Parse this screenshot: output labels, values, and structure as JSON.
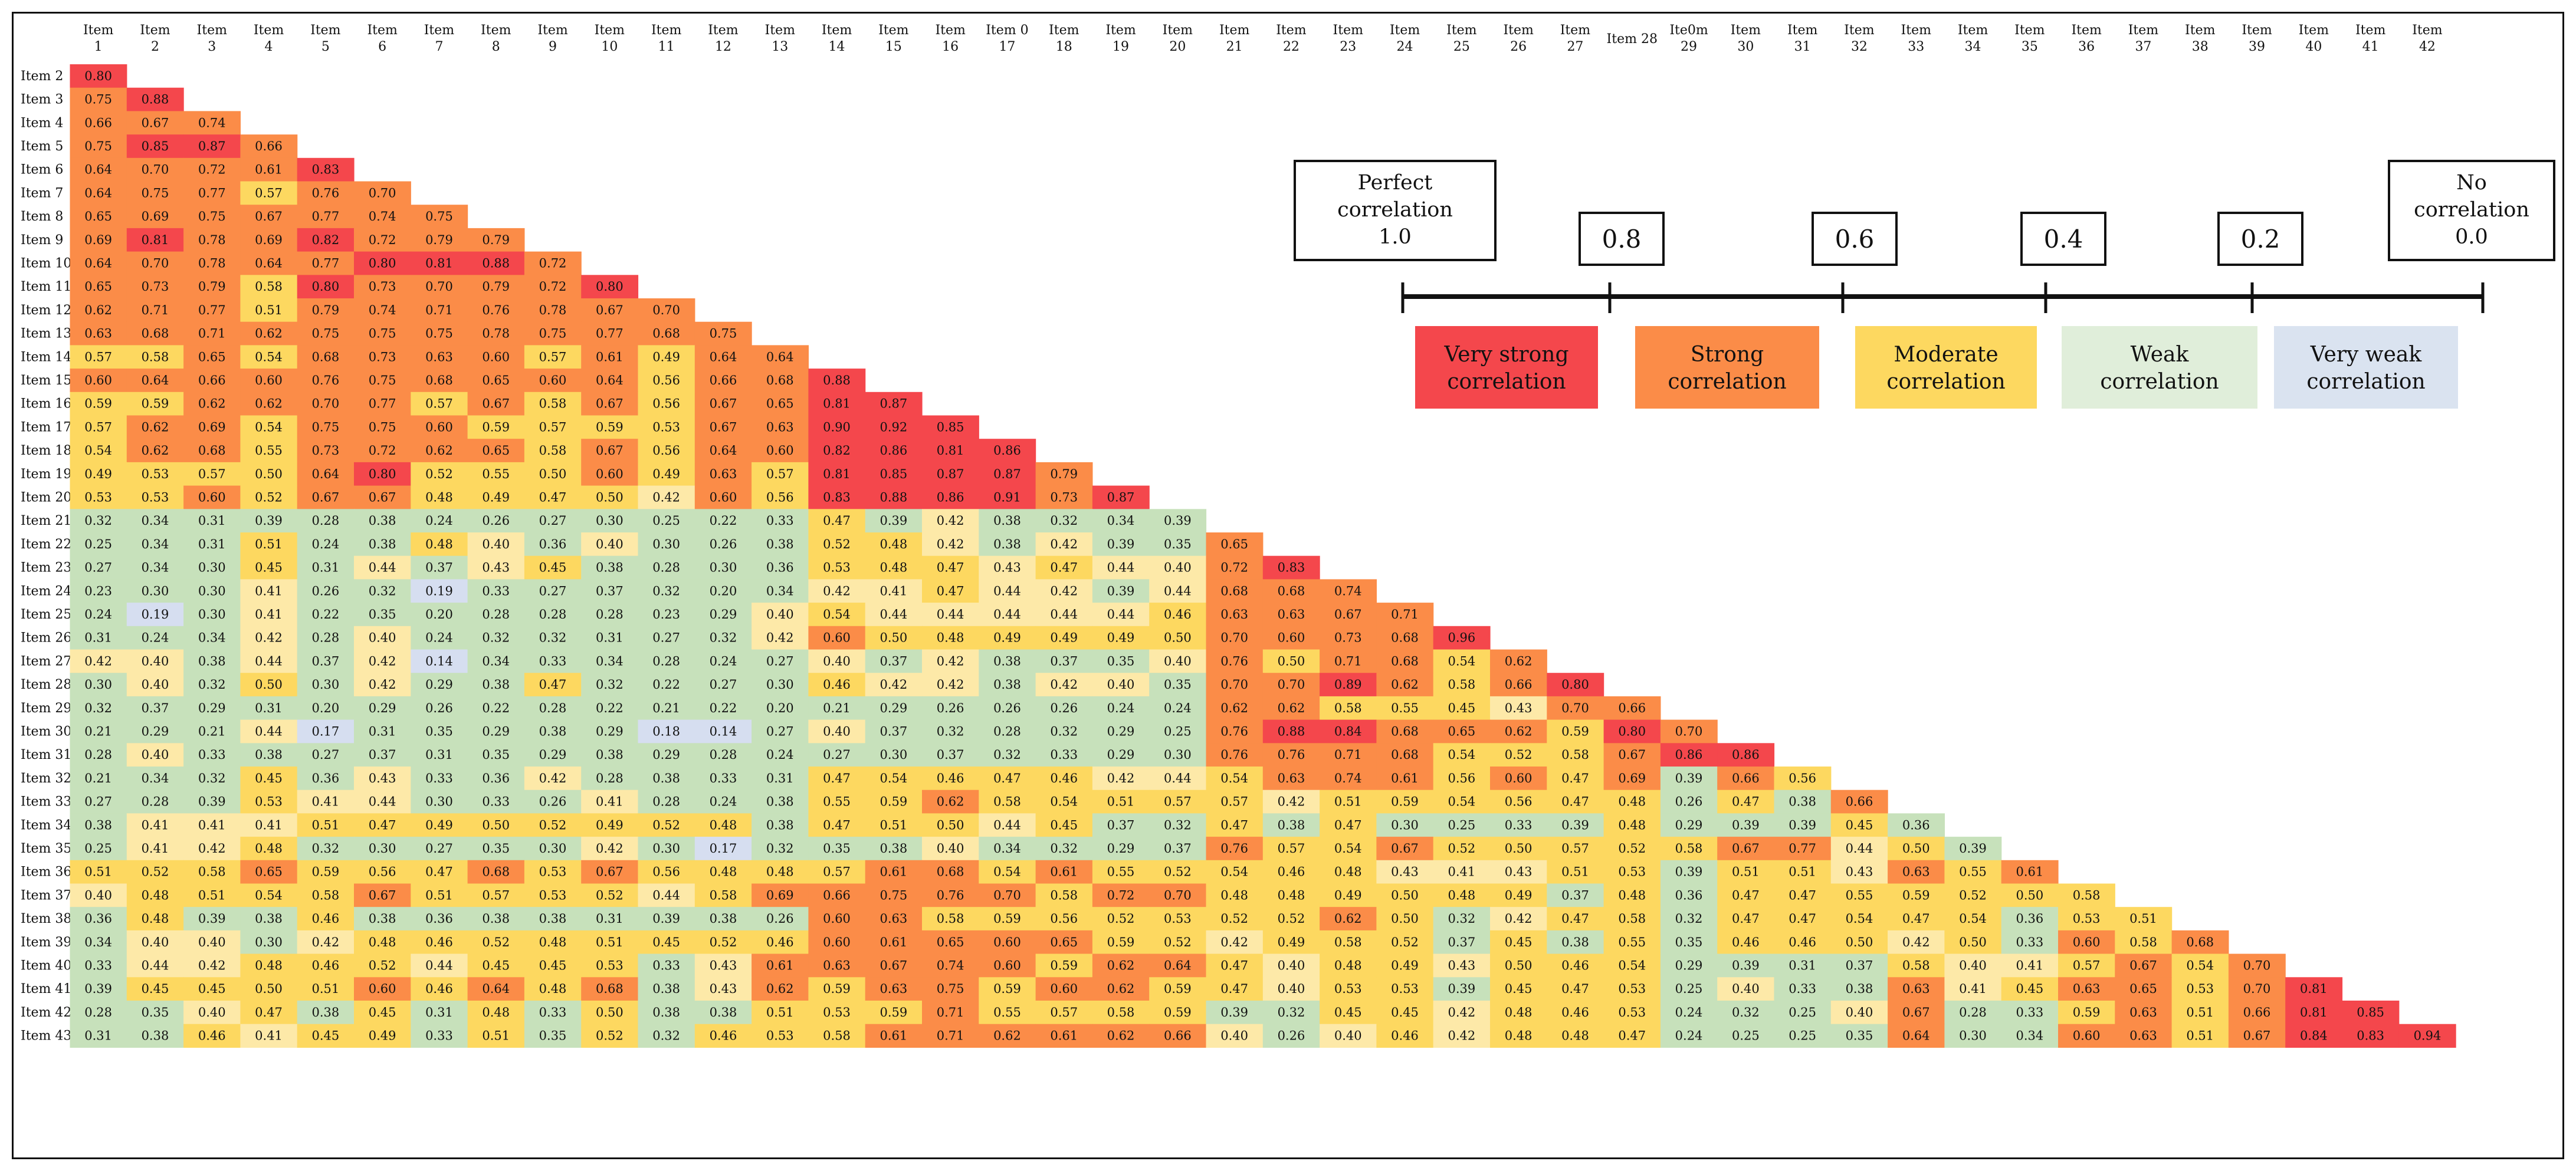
{
  "chart_data": {
    "type": "heatmap",
    "layout": "lower-triangular",
    "column_labels": [
      [
        "Item",
        "1"
      ],
      [
        "Item",
        "2"
      ],
      [
        "Item",
        "3"
      ],
      [
        "Item",
        "4"
      ],
      [
        "Item",
        "5"
      ],
      [
        "Item",
        "6"
      ],
      [
        "Item",
        "7"
      ],
      [
        "Item",
        "8"
      ],
      [
        "Item",
        "9"
      ],
      [
        "Item",
        "10"
      ],
      [
        "Item",
        "11"
      ],
      [
        "Item",
        "12"
      ],
      [
        "Item",
        "13"
      ],
      [
        "Item",
        "14"
      ],
      [
        "Item",
        "15"
      ],
      [
        "Item",
        "16"
      ],
      [
        "Item 0",
        "17"
      ],
      [
        "Item",
        "18"
      ],
      [
        "Item",
        "19"
      ],
      [
        "Item",
        "20"
      ],
      [
        "Item",
        "21"
      ],
      [
        "Item",
        "22"
      ],
      [
        "Item",
        "23"
      ],
      [
        "Item",
        "24"
      ],
      [
        "Item",
        "25"
      ],
      [
        "Item",
        "26"
      ],
      [
        "Item",
        "27"
      ],
      [
        "Item 28",
        ""
      ],
      [
        "Ite0m",
        "29"
      ],
      [
        "Item",
        "30"
      ],
      [
        "Item",
        "31"
      ],
      [
        "Item",
        "32"
      ],
      [
        "Item",
        "33"
      ],
      [
        "Item",
        "34"
      ],
      [
        "Item",
        "35"
      ],
      [
        "Item",
        "36"
      ],
      [
        "Item",
        "37"
      ],
      [
        "Item",
        "38"
      ],
      [
        "Item",
        "39"
      ],
      [
        "Item",
        "40"
      ],
      [
        "Item",
        "41"
      ],
      [
        "Item",
        "42"
      ]
    ],
    "row_labels": [
      "Item 2",
      "Item 3",
      "Item 4",
      "Item 5",
      "Item 6",
      "Item 7",
      "Item 8",
      "Item 9",
      "Item 10",
      "Item 11",
      "Item 12",
      "Item 13",
      "Item 14",
      "Item 15",
      "Item 16",
      "Item 17",
      "Item 18",
      "Item 19",
      "Item 20",
      "Item 21",
      "Item 22",
      "Item 23",
      "Item 24",
      "Item 25",
      "Item 26",
      "Item 27",
      "Item 28",
      "Item 29",
      "Item 30",
      "Item 31",
      "Item 32",
      "Item 33",
      "Item 34",
      "Item 35",
      "Item 36",
      "Item 37",
      "Item 38",
      "Item 39",
      "Item 40",
      "Item 41",
      "Item 42",
      "Item 43"
    ],
    "rows": [
      [
        "0.80"
      ],
      [
        "0.75",
        "0.88"
      ],
      [
        "0.66",
        "0.67",
        "0.74"
      ],
      [
        "0.75",
        "0.85",
        "0.87",
        "0.66"
      ],
      [
        "0.64",
        "0.70",
        "0.72",
        "0.61",
        "0.83"
      ],
      [
        "0.64",
        "0.75",
        "0.77",
        "0.57",
        "0.76",
        "0.70"
      ],
      [
        "0.65",
        "0.69",
        "0.75",
        "0.67",
        "0.77",
        "0.74",
        "0.75"
      ],
      [
        "0.69",
        "0.81",
        "0.78",
        "0.69",
        "0.82",
        "0.72",
        "0.79",
        "0.79"
      ],
      [
        "0.64",
        "0.70",
        "0.78",
        "0.64",
        "0.77",
        "0.80",
        "0.81",
        "0.88",
        "0.72"
      ],
      [
        "0.65",
        "0.73",
        "0.79",
        "0.58",
        "0.80",
        "0.73",
        "0.70",
        "0.79",
        "0.72",
        "0.80"
      ],
      [
        "0.62",
        "0.71",
        "0.77",
        "0.51",
        "0.79",
        "0.74",
        "0.71",
        "0.76",
        "0.78",
        "0.67",
        "0.70"
      ],
      [
        "0.63",
        "0.68",
        "0.71",
        "0.62",
        "0.75",
        "0.75",
        "0.75",
        "0.78",
        "0.75",
        "0.77",
        "0.68",
        "0.75"
      ],
      [
        "0.57",
        "0.58",
        "0.65",
        "0.54",
        "0.68",
        "0.73",
        "0.63",
        "0.60",
        "0.57",
        "0.61",
        "0.49",
        "0.64",
        "0.64"
      ],
      [
        "0.60",
        "0.64",
        "0.66",
        "0.60",
        "0.76",
        "0.75",
        "0.68",
        "0.65",
        "0.60",
        "0.64",
        "0.56",
        "0.66",
        "0.68",
        "0.88"
      ],
      [
        "0.59",
        "0.59",
        "0.62",
        "0.62",
        "0.70",
        "0.77",
        "0.57",
        "0.67",
        "0.58",
        "0.67",
        "0.56",
        "0.67",
        "0.65",
        "0.81",
        "0.87"
      ],
      [
        "0.57",
        "0.62",
        "0.69",
        "0.54",
        "0.75",
        "0.75",
        "0.60",
        "0.59",
        "0.57",
        "0.59",
        "0.53",
        "0.67",
        "0.63",
        "0.90",
        "0.92",
        "0.85"
      ],
      [
        "0.54",
        "0.62",
        "0.68",
        "0.55",
        "0.73",
        "0.72",
        "0.62",
        "0.65",
        "0.58",
        "0.67",
        "0.56",
        "0.64",
        "0.60",
        "0.82",
        "0.86",
        "0.81",
        "0.86"
      ],
      [
        "0.49",
        "0.53",
        "0.57",
        "0.50",
        "0.64",
        "0.80",
        "0.52",
        "0.55",
        "0.50",
        "0.60",
        "0.49",
        "0.63",
        "0.57",
        "0.81",
        "0.85",
        "0.87",
        "0.87",
        "0.79"
      ],
      [
        "0.53",
        "0.53",
        "0.60",
        "0.52",
        "0.67",
        "0.67",
        "0.48",
        "0.49",
        "0.47",
        "0.50",
        "0.42",
        "0.60",
        "0.56",
        "0.83",
        "0.88",
        "0.86",
        "0.91",
        "0.73",
        "0.87"
      ],
      [
        "0.32",
        "0.34",
        "0.31",
        "0.39",
        "0.28",
        "0.38",
        "0.24",
        "0.26",
        "0.27",
        "0.30",
        "0.25",
        "0.22",
        "0.33",
        "0.47",
        "0.39",
        "0.42",
        "0.38",
        "0.32",
        "0.34",
        "0.39"
      ],
      [
        "0.25",
        "0.34",
        "0.31",
        "0.51",
        "0.24",
        "0.38",
        "0.48",
        "0.40",
        "0.36",
        "0.40",
        "0.30",
        "0.26",
        "0.38",
        "0.52",
        "0.48",
        "0.42",
        "0.38",
        "0.42",
        "0.39",
        "0.35",
        "0.65"
      ],
      [
        "0.27",
        "0.34",
        "0.30",
        "0.45",
        "0.31",
        "0.44",
        "0.37",
        "0.43",
        "0.45",
        "0.38",
        "0.28",
        "0.30",
        "0.36",
        "0.53",
        "0.48",
        "0.47",
        "0.43",
        "0.47",
        "0.44",
        "0.40",
        "0.72",
        "0.83"
      ],
      [
        "0.23",
        "0.30",
        "0.30",
        "0.41",
        "0.26",
        "0.32",
        "0.19",
        "0.33",
        "0.27",
        "0.37",
        "0.32",
        "0.20",
        "0.34",
        "0.42",
        "0.41",
        "0.47",
        "0.44",
        "0.42",
        "0.39",
        "0.44",
        "0.68",
        "0.68",
        "0.74"
      ],
      [
        "0.24",
        "0.19",
        "0.30",
        "0.41",
        "0.22",
        "0.35",
        "0.20",
        "0.28",
        "0.28",
        "0.28",
        "0.23",
        "0.29",
        "0.40",
        "0.54",
        "0.44",
        "0.44",
        "0.44",
        "0.44",
        "0.44",
        "0.46",
        "0.63",
        "0.63",
        "0.67",
        "0.71"
      ],
      [
        "0.31",
        "0.24",
        "0.34",
        "0.42",
        "0.28",
        "0.40",
        "0.24",
        "0.32",
        "0.32",
        "0.31",
        "0.27",
        "0.32",
        "0.42",
        "0.60",
        "0.50",
        "0.48",
        "0.49",
        "0.49",
        "0.49",
        "0.50",
        "0.70",
        "0.60",
        "0.73",
        "0.68",
        "0.96"
      ],
      [
        "0.42",
        "0.40",
        "0.38",
        "0.44",
        "0.37",
        "0.42",
        "0.14",
        "0.34",
        "0.33",
        "0.34",
        "0.28",
        "0.24",
        "0.27",
        "0.40",
        "0.37",
        "0.42",
        "0.38",
        "0.37",
        "0.35",
        "0.40",
        "0.76",
        "0.50",
        "0.71",
        "0.68",
        "0.54",
        "0.62"
      ],
      [
        "0.30",
        "0.40",
        "0.32",
        "0.50",
        "0.30",
        "0.42",
        "0.29",
        "0.38",
        "0.47",
        "0.32",
        "0.22",
        "0.27",
        "0.30",
        "0.46",
        "0.42",
        "0.42",
        "0.38",
        "0.42",
        "0.40",
        "0.35",
        "0.70",
        "0.70",
        "0.89",
        "0.62",
        "0.58",
        "0.66",
        "0.80"
      ],
      [
        "0.32",
        "0.37",
        "0.29",
        "0.31",
        "0.20",
        "0.29",
        "0.26",
        "0.22",
        "0.28",
        "0.22",
        "0.21",
        "0.22",
        "0.20",
        "0.21",
        "0.29",
        "0.26",
        "0.26",
        "0.26",
        "0.24",
        "0.24",
        "0.62",
        "0.62",
        "0.58",
        "0.55",
        "0.45",
        "0.43",
        "0.70",
        "0.66"
      ],
      [
        "0.21",
        "0.29",
        "0.21",
        "0.44",
        "0.17",
        "0.31",
        "0.35",
        "0.29",
        "0.38",
        "0.29",
        "0.18",
        "0.14",
        "0.27",
        "0.40",
        "0.37",
        "0.32",
        "0.28",
        "0.32",
        "0.29",
        "0.25",
        "0.76",
        "0.88",
        "0.84",
        "0.68",
        "0.65",
        "0.62",
        "0.59",
        "0.80",
        "0.70"
      ],
      [
        "0.28",
        "0.40",
        "0.33",
        "0.38",
        "0.27",
        "0.37",
        "0.31",
        "0.35",
        "0.29",
        "0.38",
        "0.29",
        "0.28",
        "0.24",
        "0.27",
        "0.30",
        "0.37",
        "0.32",
        "0.33",
        "0.29",
        "0.30",
        "0.76",
        "0.76",
        "0.71",
        "0.68",
        "0.54",
        "0.52",
        "0.58",
        "0.67",
        "0.86",
        "0.86"
      ],
      [
        "0.21",
        "0.34",
        "0.32",
        "0.45",
        "0.36",
        "0.43",
        "0.33",
        "0.36",
        "0.42",
        "0.28",
        "0.38",
        "0.33",
        "0.31",
        "0.47",
        "0.54",
        "0.46",
        "0.47",
        "0.46",
        "0.42",
        "0.44",
        "0.54",
        "0.63",
        "0.74",
        "0.61",
        "0.56",
        "0.60",
        "0.47",
        "0.69",
        "0.39",
        "0.66",
        "0.56"
      ],
      [
        "0.27",
        "0.28",
        "0.39",
        "0.53",
        "0.41",
        "0.44",
        "0.30",
        "0.33",
        "0.26",
        "0.41",
        "0.28",
        "0.24",
        "0.38",
        "0.55",
        "0.59",
        "0.62",
        "0.58",
        "0.54",
        "0.51",
        "0.57",
        "0.57",
        "0.42",
        "0.51",
        "0.59",
        "0.54",
        "0.56",
        "0.47",
        "0.48",
        "0.26",
        "0.47",
        "0.38",
        "0.66"
      ],
      [
        "0.38",
        "0.41",
        "0.41",
        "0.41",
        "0.51",
        "0.47",
        "0.49",
        "0.50",
        "0.52",
        "0.49",
        "0.52",
        "0.48",
        "0.38",
        "0.47",
        "0.51",
        "0.50",
        "0.44",
        "0.45",
        "0.37",
        "0.32",
        "0.47",
        "0.38",
        "0.47",
        "0.30",
        "0.25",
        "0.33",
        "0.39",
        "0.48",
        "0.29",
        "0.39",
        "0.39",
        "0.45",
        "0.36"
      ],
      [
        "0.25",
        "0.41",
        "0.42",
        "0.48",
        "0.32",
        "0.30",
        "0.27",
        "0.35",
        "0.30",
        "0.42",
        "0.30",
        "0.17",
        "0.32",
        "0.35",
        "0.38",
        "0.40",
        "0.34",
        "0.32",
        "0.29",
        "0.37",
        "0.76",
        "0.57",
        "0.54",
        "0.67",
        "0.52",
        "0.50",
        "0.57",
        "0.52",
        "0.58",
        "0.67",
        "0.77",
        "0.44",
        "0.50",
        "0.39"
      ],
      [
        "0.51",
        "0.52",
        "0.58",
        "0.65",
        "0.59",
        "0.56",
        "0.47",
        "0.68",
        "0.53",
        "0.67",
        "0.56",
        "0.48",
        "0.48",
        "0.57",
        "0.61",
        "0.68",
        "0.54",
        "0.61",
        "0.55",
        "0.52",
        "0.54",
        "0.46",
        "0.48",
        "0.43",
        "0.41",
        "0.43",
        "0.51",
        "0.53",
        "0.39",
        "0.51",
        "0.51",
        "0.43",
        "0.63",
        "0.55",
        "0.61"
      ],
      [
        "0.40",
        "0.48",
        "0.51",
        "0.54",
        "0.58",
        "0.67",
        "0.51",
        "0.57",
        "0.53",
        "0.52",
        "0.44",
        "0.58",
        "0.69",
        "0.66",
        "0.75",
        "0.76",
        "0.70",
        "0.58",
        "0.72",
        "0.70",
        "0.48",
        "0.48",
        "0.49",
        "0.50",
        "0.48",
        "0.49",
        "0.37",
        "0.48",
        "0.36",
        "0.47",
        "0.47",
        "0.55",
        "0.59",
        "0.52",
        "0.50",
        "0.58"
      ],
      [
        "0.36",
        "0.48",
        "0.39",
        "0.38",
        "0.46",
        "0.38",
        "0.36",
        "0.38",
        "0.38",
        "0.31",
        "0.39",
        "0.38",
        "0.26",
        "0.60",
        "0.63",
        "0.58",
        "0.59",
        "0.56",
        "0.52",
        "0.53",
        "0.52",
        "0.52",
        "0.62",
        "0.50",
        "0.32",
        "0.42",
        "0.47",
        "0.58",
        "0.32",
        "0.47",
        "0.47",
        "0.54",
        "0.47",
        "0.54",
        "0.36",
        "0.53",
        "0.51"
      ],
      [
        "0.34",
        "0.40",
        "0.40",
        "0.30",
        "0.42",
        "0.48",
        "0.46",
        "0.52",
        "0.48",
        "0.51",
        "0.45",
        "0.52",
        "0.46",
        "0.60",
        "0.61",
        "0.65",
        "0.60",
        "0.65",
        "0.59",
        "0.52",
        "0.42",
        "0.49",
        "0.58",
        "0.52",
        "0.37",
        "0.45",
        "0.38",
        "0.55",
        "0.35",
        "0.46",
        "0.46",
        "0.50",
        "0.42",
        "0.50",
        "0.33",
        "0.60",
        "0.58",
        "0.68"
      ],
      [
        "0.33",
        "0.44",
        "0.42",
        "0.48",
        "0.46",
        "0.52",
        "0.44",
        "0.45",
        "0.45",
        "0.53",
        "0.33",
        "0.43",
        "0.61",
        "0.63",
        "0.67",
        "0.74",
        "0.60",
        "0.59",
        "0.62",
        "0.64",
        "0.47",
        "0.40",
        "0.48",
        "0.49",
        "0.43",
        "0.50",
        "0.46",
        "0.54",
        "0.29",
        "0.39",
        "0.31",
        "0.37",
        "0.58",
        "0.40",
        "0.41",
        "0.57",
        "0.67",
        "0.54",
        "0.70"
      ],
      [
        "0.39",
        "0.45",
        "0.45",
        "0.50",
        "0.51",
        "0.60",
        "0.46",
        "0.64",
        "0.48",
        "0.68",
        "0.38",
        "0.43",
        "0.62",
        "0.59",
        "0.63",
        "0.75",
        "0.59",
        "0.60",
        "0.62",
        "0.59",
        "0.47",
        "0.40",
        "0.53",
        "0.53",
        "0.39",
        "0.45",
        "0.47",
        "0.53",
        "0.25",
        "0.40",
        "0.33",
        "0.38",
        "0.63",
        "0.41",
        "0.45",
        "0.63",
        "0.65",
        "0.53",
        "0.70",
        "0.81"
      ],
      [
        "0.28",
        "0.35",
        "0.40",
        "0.47",
        "0.38",
        "0.45",
        "0.31",
        "0.48",
        "0.33",
        "0.50",
        "0.38",
        "0.38",
        "0.51",
        "0.53",
        "0.59",
        "0.71",
        "0.55",
        "0.57",
        "0.58",
        "0.59",
        "0.39",
        "0.32",
        "0.45",
        "0.45",
        "0.42",
        "0.48",
        "0.46",
        "0.53",
        "0.24",
        "0.32",
        "0.25",
        "0.40",
        "0.67",
        "0.28",
        "0.33",
        "0.59",
        "0.63",
        "0.51",
        "0.66",
        "0.81",
        "0.85"
      ],
      [
        "0.31",
        "0.38",
        "0.46",
        "0.41",
        "0.45",
        "0.49",
        "0.33",
        "0.51",
        "0.35",
        "0.52",
        "0.32",
        "0.46",
        "0.53",
        "0.58",
        "0.61",
        "0.71",
        "0.62",
        "0.61",
        "0.62",
        "0.66",
        "0.40",
        "0.26",
        "0.40",
        "0.46",
        "0.42",
        "0.48",
        "0.48",
        "0.47",
        "0.24",
        "0.25",
        "0.25",
        "0.35",
        "0.64",
        "0.30",
        "0.34",
        "0.60",
        "0.63",
        "0.51",
        "0.67",
        "0.84",
        "0.83",
        "0.94"
      ]
    ],
    "legend": {
      "endpoints": [
        [
          "Perfect",
          "correlation",
          "1.0"
        ],
        [
          "No",
          "correlation",
          "0.0"
        ]
      ],
      "ticks": [
        "0.8",
        "0.6",
        "0.4",
        "0.2"
      ],
      "categories": [
        {
          "label": [
            "Very strong",
            "correlation"
          ],
          "color": "#f4474c"
        },
        {
          "label": [
            "Strong",
            "correlation"
          ],
          "color": "#fb8c48"
        },
        {
          "label": [
            "Moderate",
            "correlation"
          ],
          "color": "#fdd860"
        },
        {
          "label": [
            "Weak",
            "correlation"
          ],
          "color": "#e0eeda"
        },
        {
          "label": [
            "Very weak",
            "correlation"
          ],
          "color": "#dae3f0"
        }
      ]
    },
    "colors": {
      "very_strong": "#f4474c",
      "strong": "#fb8c48",
      "moderate": "#fdd860",
      "moderate_light": "#fde9a8",
      "weak": "#c7e1bb",
      "very_weak": "#d6def0"
    }
  }
}
